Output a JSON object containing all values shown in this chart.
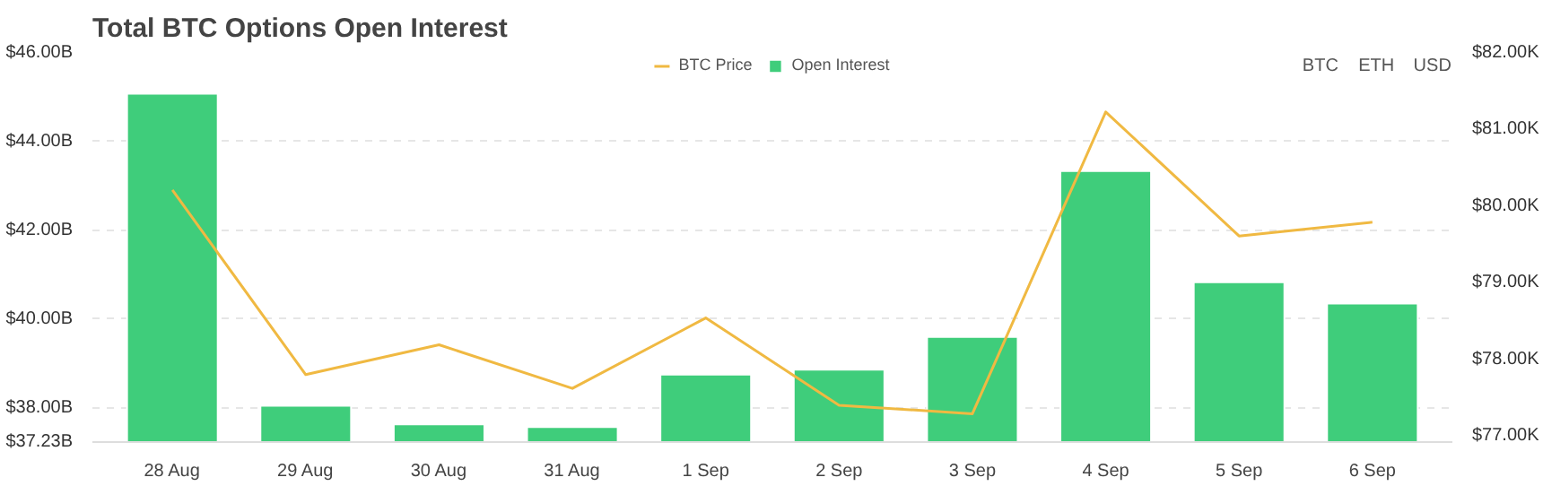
{
  "chart_data": {
    "type": "bar",
    "title": "Total BTC Options Open Interest",
    "categories": [
      "28 Aug",
      "29 Aug",
      "30 Aug",
      "31 Aug",
      "1 Sep",
      "2 Sep",
      "3 Sep",
      "4 Sep",
      "5 Sep",
      "6 Sep"
    ],
    "series": [
      {
        "name": "BTC Price",
        "type": "line",
        "axis": "y2",
        "color": "#f0b942",
        "values": [
          80.21,
          77.8,
          78.19,
          77.62,
          78.54,
          77.4,
          77.29,
          81.23,
          79.61,
          79.79
        ]
      },
      {
        "name": "Open Interest",
        "type": "bar",
        "color": "#3fcd7b",
        "values": [
          45.08,
          38.05,
          37.63,
          37.57,
          38.75,
          38.86,
          39.6,
          43.34,
          40.83,
          40.35
        ]
      }
    ],
    "ylim": [
      37.23,
      46
    ],
    "yticks": [
      {
        "value": 37.23,
        "label": "$37.23B"
      },
      {
        "value": 38,
        "label": "$38.00B"
      },
      {
        "value": 40,
        "label": "$40.00B"
      },
      {
        "value": 42,
        "label": "$42.00B"
      },
      {
        "value": 44,
        "label": "$44.00B"
      },
      {
        "value": 46,
        "label": "$46.00B"
      }
    ],
    "y2lim": [
      76.92,
      82
    ],
    "y2ticks": [
      {
        "value": 77,
        "label": "$77.00K"
      },
      {
        "value": 78,
        "label": "$78.00K"
      },
      {
        "value": 79,
        "label": "$79.00K"
      },
      {
        "value": 80,
        "label": "$80.00K"
      },
      {
        "value": 81,
        "label": "$81.00K"
      },
      {
        "value": 82,
        "label": "$82.00K"
      }
    ],
    "grid": "y",
    "legend": "top",
    "line_style": "solid",
    "annotations": [
      "BTC",
      "ETH",
      "USD"
    ]
  }
}
